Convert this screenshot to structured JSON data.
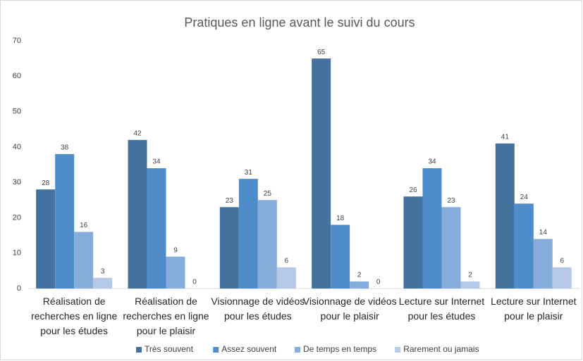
{
  "chart_data": {
    "type": "bar",
    "title": "Pratiques en ligne avant le suivi du cours",
    "categories": [
      "Réalisation de recherches en ligne pour les études",
      "Réalisation de recherches en ligne pour le plaisir",
      "Visionnage de vidéos pour les études",
      "Visionnage de vidéos pour le plaisir",
      "Lecture sur Internet pour les études",
      "Lecture sur Internet pour le plaisir"
    ],
    "series": [
      {
        "name": "Très souvent",
        "color": "#44729e",
        "values": [
          28,
          42,
          23,
          65,
          26,
          41
        ]
      },
      {
        "name": "Assez souvent",
        "color": "#4f8dca",
        "values": [
          38,
          34,
          31,
          18,
          34,
          24
        ]
      },
      {
        "name": "De temps en temps",
        "color": "#86acdb",
        "values": [
          16,
          9,
          25,
          2,
          23,
          14
        ]
      },
      {
        "name": "Rarement ou jamais",
        "color": "#b5c9e7",
        "values": [
          3,
          0,
          6,
          0,
          2,
          6
        ]
      }
    ],
    "ylim": [
      0,
      70
    ],
    "yticks": [
      0,
      10,
      20,
      30,
      40,
      50,
      60,
      70
    ],
    "grid": false,
    "legend": "bottom"
  }
}
